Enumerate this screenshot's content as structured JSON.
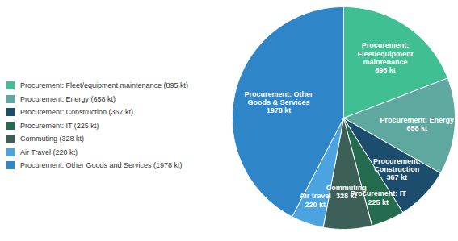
{
  "chart_data": {
    "type": "pie",
    "categories": [
      "Procurement: Fleet/equipment maintenance (895 kt)",
      "Procurement: Energy (658 kt)",
      "Procurement: Construction (367 kt)",
      "Procurement: IT (225 kt)",
      "Commuting (328 kt)",
      "Air Travel (220 kt)",
      "Procurement: Other Goods and Services (1978 kt)"
    ],
    "values": [
      895,
      658,
      367,
      225,
      328,
      220,
      1978
    ],
    "value_labels": [
      "895 kt",
      "658 kt",
      "367 kt",
      "225 kt",
      "328 kt",
      "220 kt",
      "1978 kt"
    ],
    "slice_labels": [
      [
        "Procurement:",
        "Fleet/equipment",
        "maintenance"
      ],
      [
        "Procurement: Energy"
      ],
      [
        "Procurement:",
        "Construction"
      ],
      [
        "Procurement: IT"
      ],
      [
        "Commuting"
      ],
      [
        "Air travel"
      ],
      [
        "Procurement: Other",
        "Goods & Services"
      ]
    ],
    "colors": [
      "#40bf92",
      "#5fa89f",
      "#1c4d6d",
      "#246b50",
      "#3c5f58",
      "#4ba3df",
      "#2e86c9"
    ],
    "legend": "left",
    "data_labels": true
  }
}
